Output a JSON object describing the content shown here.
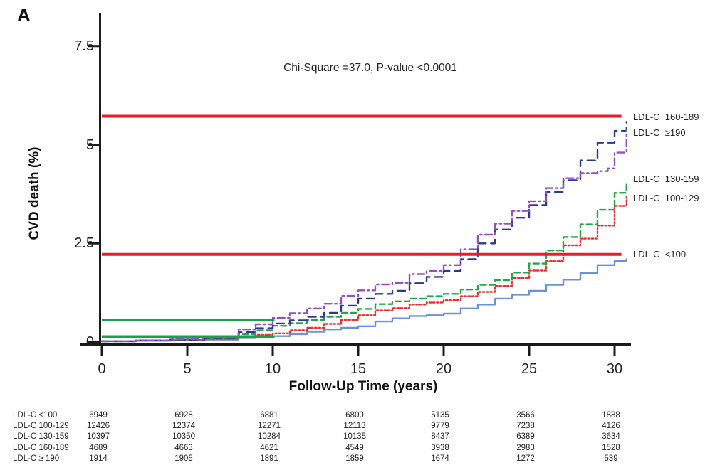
{
  "figure": {
    "panel_label": "A",
    "annotation": "Chi-Square =37.0, P-value <0.0001"
  },
  "chart_data": {
    "type": "line",
    "title": "",
    "xlabel": "Follow-Up Time (years)",
    "ylabel": "CVD death (%)",
    "xlim": [
      0,
      30.7
    ],
    "ylim": [
      0,
      7.6
    ],
    "x_ticks": [
      0,
      5,
      10,
      15,
      20,
      25,
      30
    ],
    "y_ticks": [
      0,
      2.5,
      5,
      7.5
    ],
    "x_tick_labels": [
      "0",
      "5",
      "10",
      "15",
      "20",
      "25",
      "30"
    ],
    "y_tick_labels": [
      "0",
      "2.5",
      "5",
      "7.5"
    ],
    "grid": false,
    "legend_position": "labels-at-right-edge",
    "axis_color": "#1a1a1a",
    "series": [
      {
        "name": "LDL-C <100",
        "color": "#6b92d4",
        "style": "solid",
        "dash": "",
        "points": [
          [
            0,
            0.02
          ],
          [
            2,
            0.03
          ],
          [
            4,
            0.04
          ],
          [
            6,
            0.06
          ],
          [
            8,
            0.1
          ],
          [
            9,
            0.12
          ],
          [
            10,
            0.15
          ],
          [
            11,
            0.2
          ],
          [
            12,
            0.26
          ],
          [
            13,
            0.32
          ],
          [
            14,
            0.36
          ],
          [
            15,
            0.4
          ],
          [
            16,
            0.52
          ],
          [
            17,
            0.6
          ],
          [
            18,
            0.66
          ],
          [
            19,
            0.68
          ],
          [
            20,
            0.72
          ],
          [
            21,
            0.85
          ],
          [
            22,
            0.95
          ],
          [
            23,
            1.1
          ],
          [
            24,
            1.2
          ],
          [
            25,
            1.3
          ],
          [
            26,
            1.45
          ],
          [
            27,
            1.58
          ],
          [
            28,
            1.75
          ],
          [
            29,
            1.95
          ],
          [
            30,
            2.05
          ],
          [
            30.7,
            2.1
          ]
        ]
      },
      {
        "name": "LDL-C 100-129",
        "color": "#e8312f",
        "style": "dotted",
        "dash": "2.5 2.8",
        "points": [
          [
            0,
            0.02
          ],
          [
            2,
            0.04
          ],
          [
            4,
            0.05
          ],
          [
            6,
            0.08
          ],
          [
            8,
            0.14
          ],
          [
            9,
            0.18
          ],
          [
            10,
            0.22
          ],
          [
            11,
            0.3
          ],
          [
            12,
            0.36
          ],
          [
            13,
            0.46
          ],
          [
            14,
            0.56
          ],
          [
            15,
            0.68
          ],
          [
            16,
            0.8
          ],
          [
            17,
            0.86
          ],
          [
            18,
            0.95
          ],
          [
            19,
            1.0
          ],
          [
            20,
            1.06
          ],
          [
            21,
            1.16
          ],
          [
            22,
            1.27
          ],
          [
            23,
            1.42
          ],
          [
            24,
            1.62
          ],
          [
            25,
            1.81
          ],
          [
            26,
            2.05
          ],
          [
            27,
            2.45
          ],
          [
            28,
            2.62
          ],
          [
            29,
            2.95
          ],
          [
            30,
            3.45
          ],
          [
            30.7,
            3.72
          ]
        ]
      },
      {
        "name": "LDL-C 130-159",
        "color": "#27a44a",
        "style": "dashed",
        "dash": "8 5",
        "points": [
          [
            0,
            0.02
          ],
          [
            2,
            0.04
          ],
          [
            4,
            0.06
          ],
          [
            6,
            0.1
          ],
          [
            8,
            0.2
          ],
          [
            9,
            0.3
          ],
          [
            10,
            0.41
          ],
          [
            11,
            0.48
          ],
          [
            12,
            0.56
          ],
          [
            13,
            0.64
          ],
          [
            14,
            0.74
          ],
          [
            15,
            0.84
          ],
          [
            16,
            0.96
          ],
          [
            17,
            1.03
          ],
          [
            18,
            1.1
          ],
          [
            19,
            1.16
          ],
          [
            20,
            1.22
          ],
          [
            21,
            1.33
          ],
          [
            22,
            1.45
          ],
          [
            23,
            1.57
          ],
          [
            24,
            1.76
          ],
          [
            25,
            1.99
          ],
          [
            26,
            2.32
          ],
          [
            27,
            2.66
          ],
          [
            28,
            2.98
          ],
          [
            29,
            3.35
          ],
          [
            30,
            3.78
          ],
          [
            30.7,
            4.02
          ]
        ]
      },
      {
        "name": "LDL-C 160-189",
        "color": "#2b3990",
        "style": "dashed",
        "dash": "11 7",
        "points": [
          [
            0,
            0.02
          ],
          [
            2,
            0.04
          ],
          [
            4,
            0.06
          ],
          [
            6,
            0.1
          ],
          [
            8,
            0.25
          ],
          [
            9,
            0.35
          ],
          [
            10,
            0.47
          ],
          [
            11,
            0.55
          ],
          [
            12,
            0.64
          ],
          [
            13,
            0.74
          ],
          [
            14,
            0.92
          ],
          [
            15,
            1.1
          ],
          [
            16,
            1.22
          ],
          [
            17,
            1.3
          ],
          [
            18,
            1.49
          ],
          [
            19,
            1.65
          ],
          [
            20,
            1.8
          ],
          [
            21,
            2.1
          ],
          [
            22,
            2.5
          ],
          [
            23,
            2.85
          ],
          [
            24,
            3.15
          ],
          [
            25,
            3.47
          ],
          [
            26,
            3.8
          ],
          [
            27,
            4.1
          ],
          [
            28,
            4.6
          ],
          [
            29,
            5.05
          ],
          [
            30,
            5.35
          ],
          [
            30.7,
            5.58
          ]
        ]
      },
      {
        "name": "LDL-C ≥190",
        "color": "#9351bd",
        "style": "dash-dot",
        "dash": "10 4.5 2.5 4.5",
        "points": [
          [
            0,
            0.02
          ],
          [
            2,
            0.04
          ],
          [
            4,
            0.07
          ],
          [
            6,
            0.13
          ],
          [
            8,
            0.32
          ],
          [
            9,
            0.45
          ],
          [
            10,
            0.61
          ],
          [
            11,
            0.73
          ],
          [
            12,
            0.85
          ],
          [
            13,
            0.97
          ],
          [
            14,
            1.17
          ],
          [
            15,
            1.31
          ],
          [
            16,
            1.46
          ],
          [
            17,
            1.5
          ],
          [
            18,
            1.72
          ],
          [
            19,
            1.8
          ],
          [
            20,
            1.95
          ],
          [
            21,
            2.35
          ],
          [
            22,
            2.72
          ],
          [
            23,
            3.0
          ],
          [
            24,
            3.32
          ],
          [
            25,
            3.57
          ],
          [
            26,
            3.9
          ],
          [
            27,
            4.15
          ],
          [
            28,
            4.28
          ],
          [
            29,
            4.33
          ],
          [
            29.6,
            4.4
          ],
          [
            30,
            4.8
          ],
          [
            30.7,
            5.37
          ]
        ]
      }
    ],
    "right_labels": [
      {
        "text": "LDL-C  160-189",
        "y_value": 5.72
      },
      {
        "text": "LDL-C  ≥190",
        "y_value": 5.31
      },
      {
        "text": "LDL-C  130-159",
        "y_value": 4.15
      },
      {
        "text": "LDL-C  100-129",
        "y_value": 3.66
      },
      {
        "text": "LDL-C  <100",
        "y_value": 2.24
      }
    ],
    "reference_lines": [
      {
        "name": "red-line-30yr-high",
        "color": "#ed1c24",
        "y_value": 5.72,
        "x_start": 0,
        "x_end": 30.4,
        "width": 4
      },
      {
        "name": "red-line-30yr-low",
        "color": "#ed1c24",
        "y_value": 2.22,
        "x_start": 0,
        "x_end": 30.4,
        "width": 4
      },
      {
        "name": "green-line-10yr-high",
        "color": "#18a04a",
        "y_value": 0.56,
        "x_start": 0,
        "x_end": 10.1,
        "width": 3.5
      },
      {
        "name": "green-line-10yr-low",
        "color": "#18a04a",
        "y_value": 0.14,
        "x_start": 0,
        "x_end": 10.1,
        "width": 3.5
      }
    ]
  },
  "risk_table": {
    "time_points": [
      0,
      5,
      10,
      15,
      20,
      25,
      30
    ],
    "rows": [
      {
        "label": "LDL-C <100",
        "counts": [
          "6949",
          "6928",
          "6881",
          "6800",
          "5135",
          "3566",
          "1888"
        ]
      },
      {
        "label": "LDL-C 100-129",
        "counts": [
          "12426",
          "12374",
          "12271",
          "12113",
          "9779",
          "7238",
          "4126"
        ]
      },
      {
        "label": "LDL-C 130-159",
        "counts": [
          "10397",
          "10350",
          "10284",
          "10135",
          "8437",
          "6389",
          "3634"
        ]
      },
      {
        "label": "LDL-C 160-189",
        "counts": [
          "4689",
          "4663",
          "4621",
          "4549",
          "3938",
          "2983",
          "1528"
        ]
      },
      {
        "label": "LDL-C ≥ 190",
        "counts": [
          "1914",
          "1905",
          "1891",
          "1859",
          "1674",
          "1272",
          "539"
        ]
      }
    ]
  }
}
